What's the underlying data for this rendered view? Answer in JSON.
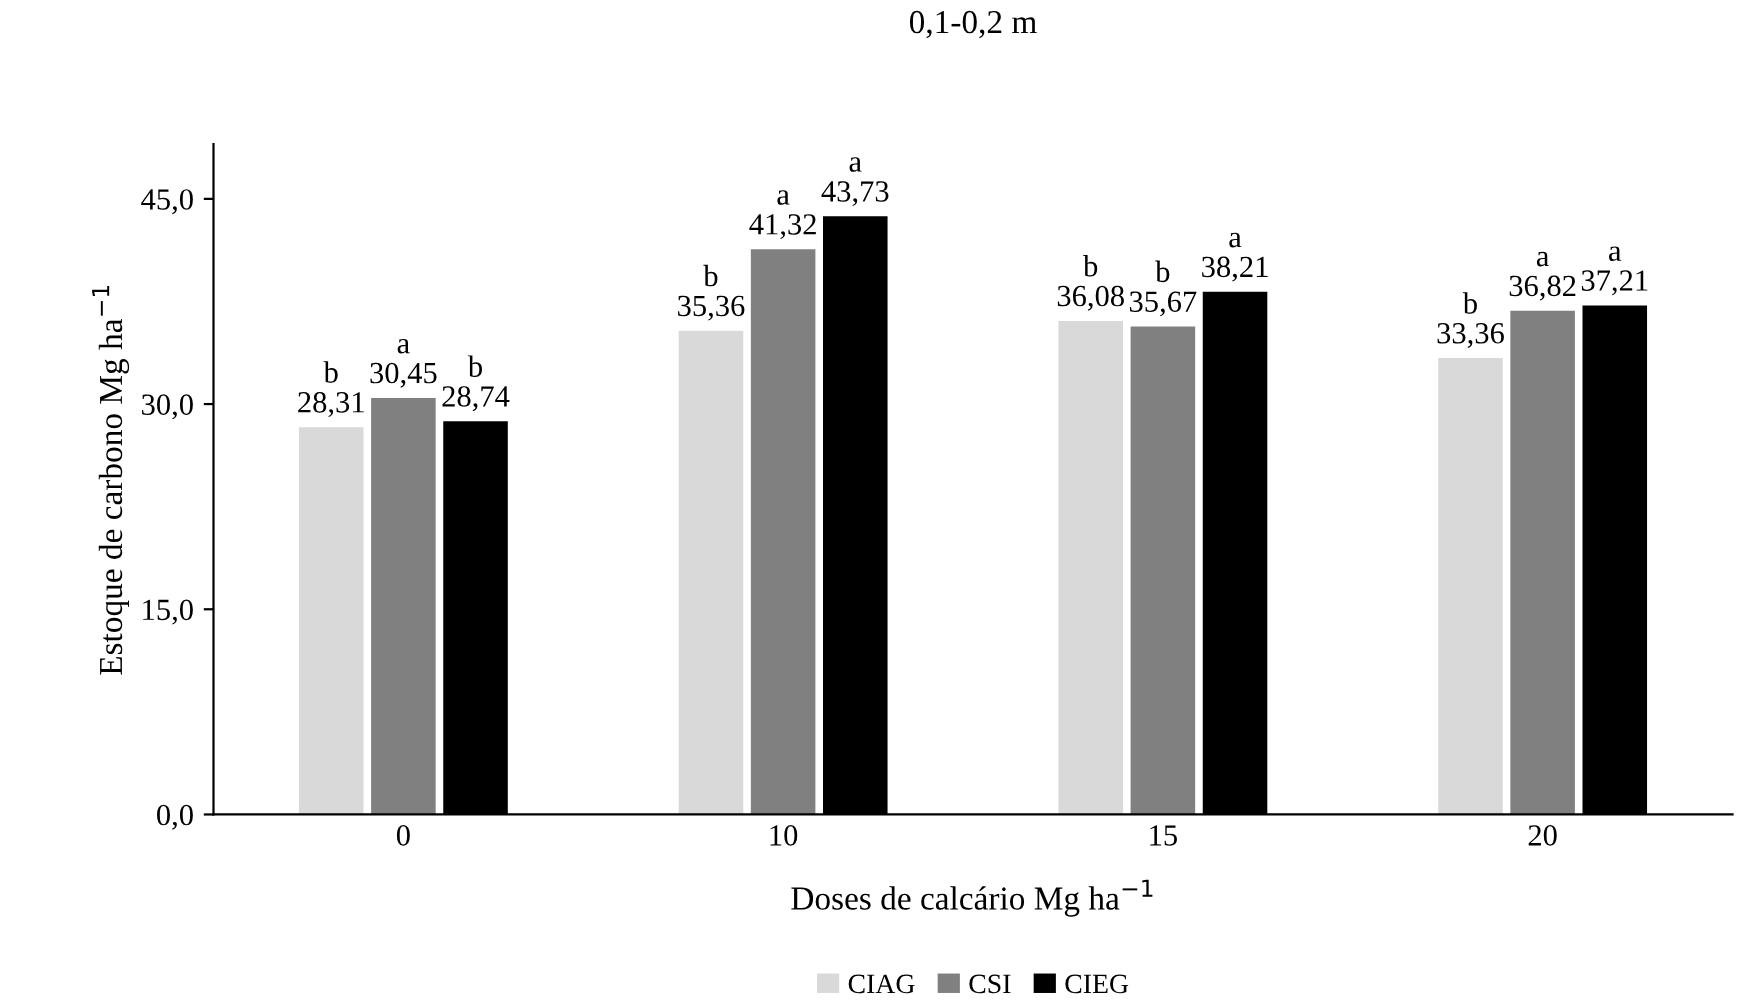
{
  "chart_data": {
    "type": "bar",
    "title": "0,1-0,2 m",
    "xlabel": "Doses de calcário Mg ha$^{−1}$",
    "ylabel": "Estoque de carbono Mg ha$^{−1}$",
    "categories": [
      "0",
      "10",
      "15",
      "20"
    ],
    "series": [
      {
        "name": "CIAG",
        "color": "#d9d9d9",
        "values": [
          28.31,
          35.36,
          36.08,
          33.36
        ],
        "value_labels": [
          "b\n28,31",
          "b\n35,36",
          "b\n36,08",
          "b\n33,36"
        ]
      },
      {
        "name": "CSI",
        "color": "#808080",
        "values": [
          30.45,
          41.32,
          35.67,
          36.82
        ],
        "value_labels": [
          "a\n30,45",
          "a\n41,32",
          "b\n35,67",
          "a\n36,82"
        ]
      },
      {
        "name": "CIEG",
        "color": "#000000",
        "values": [
          28.74,
          43.73,
          38.21,
          37.21
        ],
        "value_labels": [
          "b\n28,74",
          "a\n43,73",
          "a\n38,21",
          "a\n37,21"
        ]
      }
    ],
    "ylim": [
      0,
      49
    ],
    "yticks": [
      {
        "value": 0,
        "label": "0,0"
      },
      {
        "value": 15,
        "label": "15,0"
      },
      {
        "value": 30,
        "label": "30,0"
      },
      {
        "value": 45,
        "label": "45,0"
      }
    ],
    "grid": false,
    "legend": "bottom"
  }
}
